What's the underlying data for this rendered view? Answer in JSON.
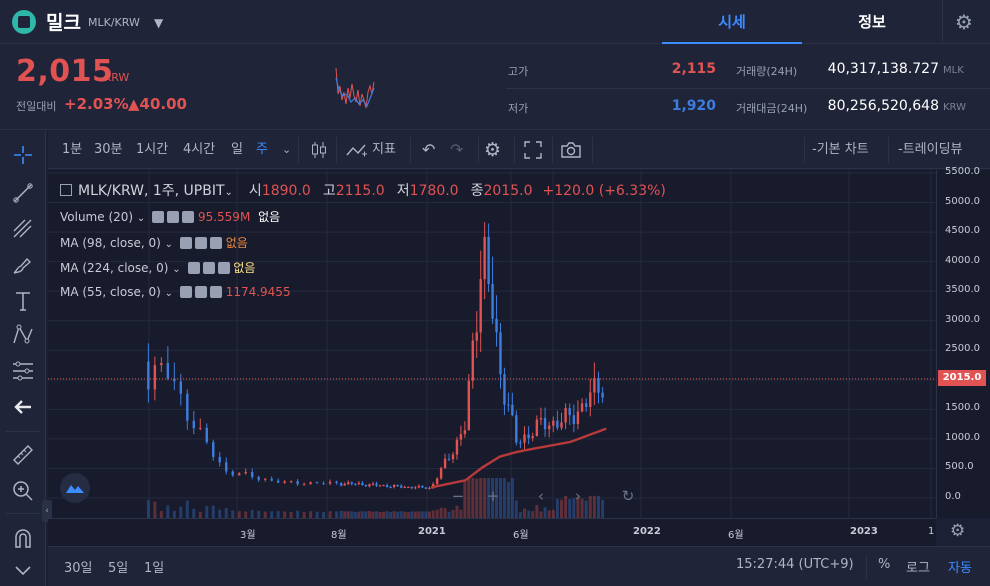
{
  "header": {
    "coin_name": "밀크",
    "coin_pair": "MLK/KRW",
    "tabs": [
      "시세",
      "정보"
    ],
    "active_tab": "시세"
  },
  "summary": {
    "price": "2,015",
    "price_unit": "KRW",
    "change_label": "전일대비",
    "change_pct": "+2.03%",
    "change_amt": "▲40.00",
    "high_label": "고가",
    "high_value": "2,115",
    "low_label": "저가",
    "low_value": "1,920",
    "volume_label": "거래량(24H)",
    "volume_value": "40,317,138.727",
    "volume_unit": "MLK",
    "amount_label": "거래대금(24H)",
    "amount_value": "80,256,520,648",
    "amount_unit": "KRW"
  },
  "toolbar": {
    "intervals": [
      "1분",
      "30분",
      "1시간",
      "4시간",
      "일",
      "주"
    ],
    "active_interval": "주",
    "indicator_label": "지표",
    "basic_chart": "-기본 차트",
    "trading_view": "-트레이딩뷰"
  },
  "legend": {
    "main": {
      "symbol": "MLK/KRW, 1주, UPBIT",
      "open_label": "시",
      "open": "1890.0",
      "high_label": "고",
      "high": "2115.0",
      "low_label": "저",
      "low": "1780.0",
      "close_label": "종",
      "close": "2015.0",
      "change": "+120.0 (+6.33%)"
    },
    "indicators": [
      {
        "name": "Volume (20)",
        "value": "95.559M",
        "value2": "없음",
        "value_color": "#e15353",
        "value2_color": "#ffffff"
      },
      {
        "name": "MA (98, close, 0)",
        "value": "없음",
        "value2": "",
        "value_color": "#f08a3c",
        "value2_color": "#ffffff"
      },
      {
        "name": "MA (224, close, 0)",
        "value": "없음",
        "value2": "",
        "value_color": "#ffe08a",
        "value2_color": "#ffffff"
      },
      {
        "name": "MA (55, close, 0)",
        "value": "1174.9455",
        "value2": "",
        "value_color": "#e15353",
        "value2_color": "#ffffff"
      }
    ]
  },
  "price_axis": [
    "5500.0",
    "5000.0",
    "4500.0",
    "4000.0",
    "3500.0",
    "3000.0",
    "2500.0",
    "2000.0",
    "1500.0",
    "1000.0",
    "500.0",
    "0.0"
  ],
  "current_price_tag": "2015.0",
  "time_axis": [
    "3월",
    "8월",
    "2021",
    "6월",
    "2022",
    "6월",
    "2023",
    "1"
  ],
  "bottom_bar": {
    "ranges": [
      "30일",
      "5일",
      "1일"
    ],
    "clock": "15:27:44 (UTC+9)",
    "percent": "%",
    "log": "로그",
    "auto": "자동"
  },
  "colors": {
    "up": "#e15353",
    "down": "#3d7de0",
    "accent": "#3d8cff",
    "ma": "#b83a3a"
  },
  "chart_data": {
    "type": "candlestick",
    "x": [
      "2020-01",
      "2020-02",
      "2020-03",
      "2020-05",
      "2020-08",
      "2020-11",
      "2021-01",
      "2021-03",
      "2021-04",
      "2021-05",
      "2021-06",
      "2021-07",
      "2021-09",
      "2021-11"
    ],
    "close": [
      2100,
      1100,
      450,
      260,
      240,
      190,
      170,
      1200,
      4300,
      2200,
      900,
      1200,
      1350,
      2015
    ],
    "ma55": [
      null,
      null,
      null,
      null,
      null,
      null,
      180,
      300,
      520,
      700,
      780,
      840,
      950,
      1174.9455
    ],
    "ylim": [
      0,
      5600
    ]
  }
}
